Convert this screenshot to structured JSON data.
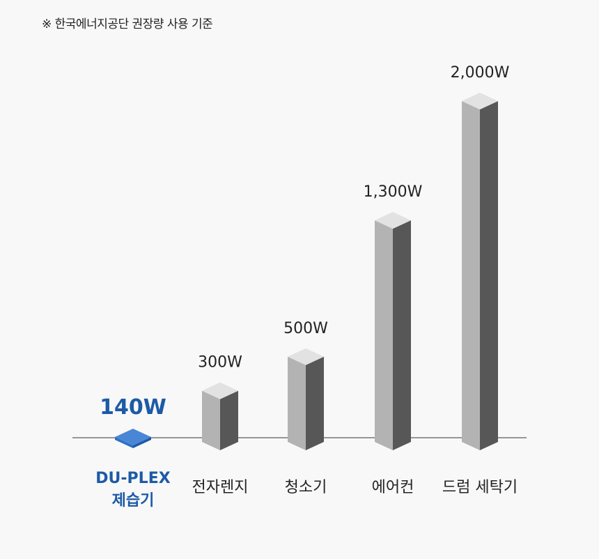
{
  "note": "※ 한국에너지공단 권장량 사용 기준",
  "chart_data": {
    "type": "bar",
    "unit": "W",
    "categories": [
      "DU-PLEX\n제습기",
      "전자렌지",
      "청소기",
      "에어컨",
      "드럼 세탁기"
    ],
    "values": [
      140,
      300,
      500,
      1300,
      2000
    ],
    "value_labels": [
      "140W",
      "300W",
      "500W",
      "1,300W",
      "2,000W"
    ],
    "highlight_index": 0,
    "colors": {
      "highlight": "#1d5aa6",
      "highlight_top": "#4a86d6",
      "highlight_front": "#2f6fc4",
      "bar_top": "#e2e2e2",
      "bar_front": "#b3b3b3",
      "bar_side": "#575757",
      "baseline": "#333333"
    }
  }
}
